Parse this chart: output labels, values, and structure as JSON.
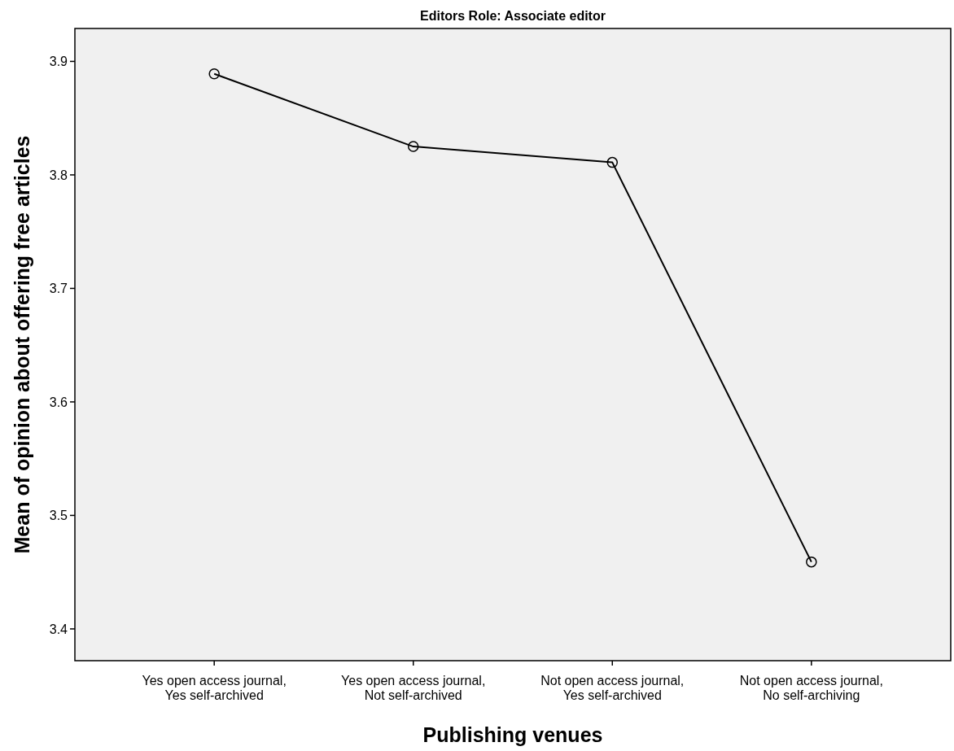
{
  "chart_data": {
    "type": "line",
    "title": "Editors Role: Associate editor",
    "xlabel": "Publishing venues",
    "ylabel": "Mean of opinion about offering free articles",
    "categories": [
      "Yes open access journal,\nYes self-archived",
      "Yes open access journal,\nNot self-archived",
      "Not open access journal,\nYes self-archived",
      "Not open access journal,\nNo self-archiving"
    ],
    "series": [
      {
        "color": "#000000",
        "values": [
          3.889,
          3.825,
          3.811,
          3.459
        ]
      }
    ],
    "ylim": [
      3.372,
      3.929
    ],
    "yticks": [
      3.4,
      3.5,
      3.6,
      3.7,
      3.8,
      3.9
    ],
    "marker": "circle",
    "line_style": "solid",
    "grid": false
  }
}
